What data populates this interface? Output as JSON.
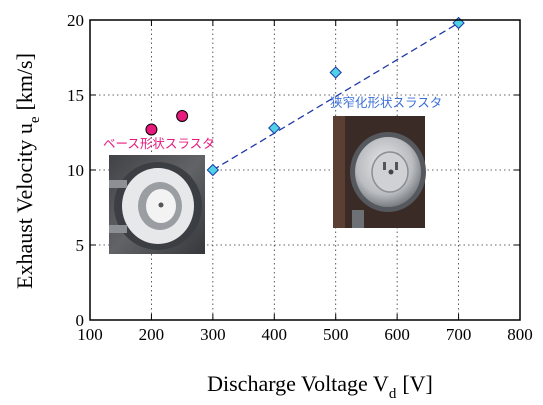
{
  "chart_data": {
    "type": "scatter",
    "xlabel": "Discharge Voltage V",
    "xlabel_sub": "d",
    "xlabel_unit": "[V]",
    "ylabel": "Exhaust Velocity u",
    "ylabel_sub": "e",
    "ylabel_unit": "[km/s]",
    "xlim": [
      100,
      800
    ],
    "ylim": [
      0,
      20
    ],
    "x_ticks": [
      100,
      200,
      300,
      400,
      500,
      600,
      700,
      800
    ],
    "x_tick_labels": [
      "100",
      "200",
      "300",
      "400",
      "500",
      "600",
      "700",
      "800"
    ],
    "y_ticks": [
      0,
      5,
      10,
      15,
      20
    ],
    "y_tick_labels": [
      "0",
      "5",
      "10",
      "15",
      "20"
    ],
    "grid": true,
    "series": [
      {
        "name": "ベース形状スラスタ",
        "marker": "circle",
        "color": "#e8197d",
        "x": [
          200,
          250
        ],
        "y": [
          12.7,
          13.6
        ]
      },
      {
        "name": "狭窄化形状スラスタ",
        "marker": "diamond",
        "color": "#4fd2e6",
        "line_color": "#1f3aa8",
        "x": [
          300,
          400,
          500,
          700
        ],
        "y": [
          10.0,
          12.8,
          16.5,
          19.8
        ]
      }
    ],
    "trendline": {
      "series": "狭窄化形状スラスタ",
      "style": "dashed",
      "color": "#1f3aa8",
      "x": [
        300,
        700
      ],
      "y": [
        10.0,
        19.8
      ]
    },
    "colors": {
      "base_label": "#e8197d",
      "narrow_label": "#3a6fd8"
    }
  }
}
